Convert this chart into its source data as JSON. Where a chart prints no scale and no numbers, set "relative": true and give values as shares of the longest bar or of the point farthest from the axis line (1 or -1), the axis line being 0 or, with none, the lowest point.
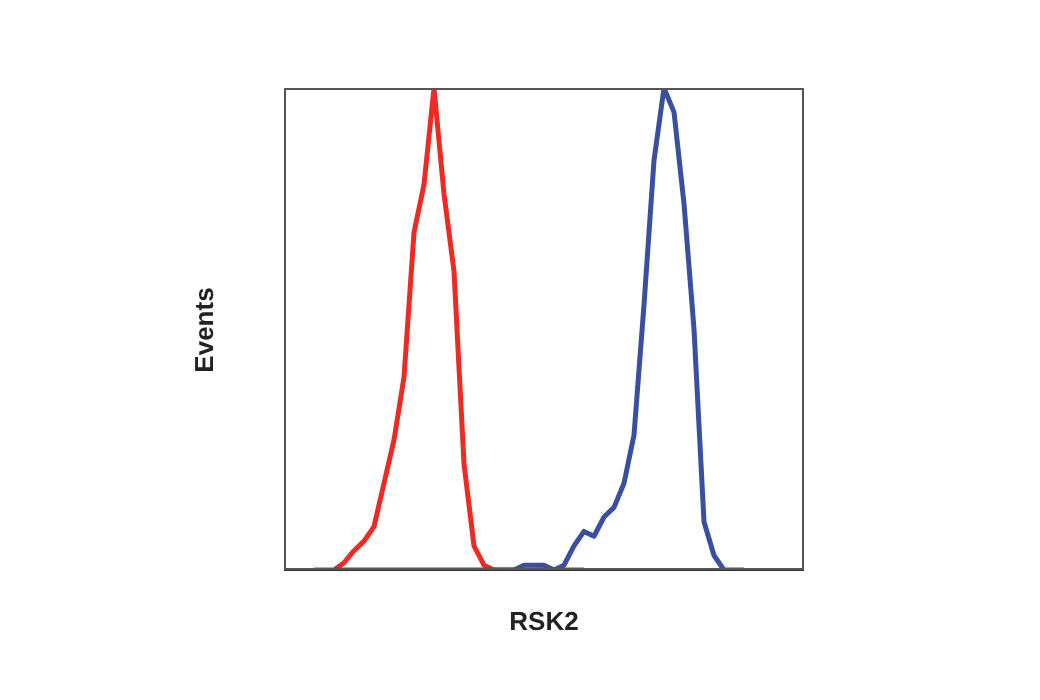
{
  "chart_data": {
    "type": "line",
    "relative": true,
    "xlabel": "RSK2",
    "ylabel": "Events",
    "categories": [
      null,
      null,
      null,
      null,
      null,
      null,
      null,
      null,
      null,
      null,
      null,
      null,
      null,
      null,
      null,
      null,
      null,
      null,
      null,
      null,
      null,
      null,
      null,
      null,
      null,
      null,
      null,
      null,
      null,
      null,
      null,
      null,
      null,
      null,
      null,
      null,
      null,
      null,
      null,
      null,
      null,
      null,
      null,
      null,
      null,
      null,
      null,
      null,
      null,
      null,
      null,
      null,
      null
    ],
    "series": [
      {
        "color": "#ee2a24",
        "values": [
          null,
          null,
          null,
          0,
          0,
          0,
          0.015,
          0.04,
          0.06,
          0.09,
          0.18,
          0.27,
          0.4,
          0.7,
          0.8,
          1.0,
          0.78,
          0.62,
          0.22,
          0.05,
          0.01,
          0,
          0,
          0,
          0,
          0,
          0,
          0,
          0,
          0,
          0,
          null,
          null,
          null,
          null,
          null,
          null,
          null,
          null,
          null,
          null,
          null,
          null,
          null,
          null,
          null,
          null,
          null,
          null,
          null,
          null,
          null,
          null
        ]
      },
      {
        "color": "#3a4fa0",
        "values": [
          null,
          null,
          null,
          null,
          null,
          0,
          0,
          0,
          0,
          0,
          0,
          0,
          0,
          0,
          0,
          0,
          0,
          0,
          0,
          0,
          0,
          0,
          0,
          0,
          0.01,
          0.01,
          0.01,
          0,
          0.01,
          0.05,
          0.08,
          0.07,
          0.11,
          0.13,
          0.18,
          0.28,
          0.55,
          0.85,
          1.0,
          0.95,
          0.76,
          0.5,
          0.1,
          0.03,
          0,
          0,
          0,
          null,
          null,
          null,
          null,
          null,
          null
        ]
      }
    ],
    "legend": false,
    "grid": false
  }
}
